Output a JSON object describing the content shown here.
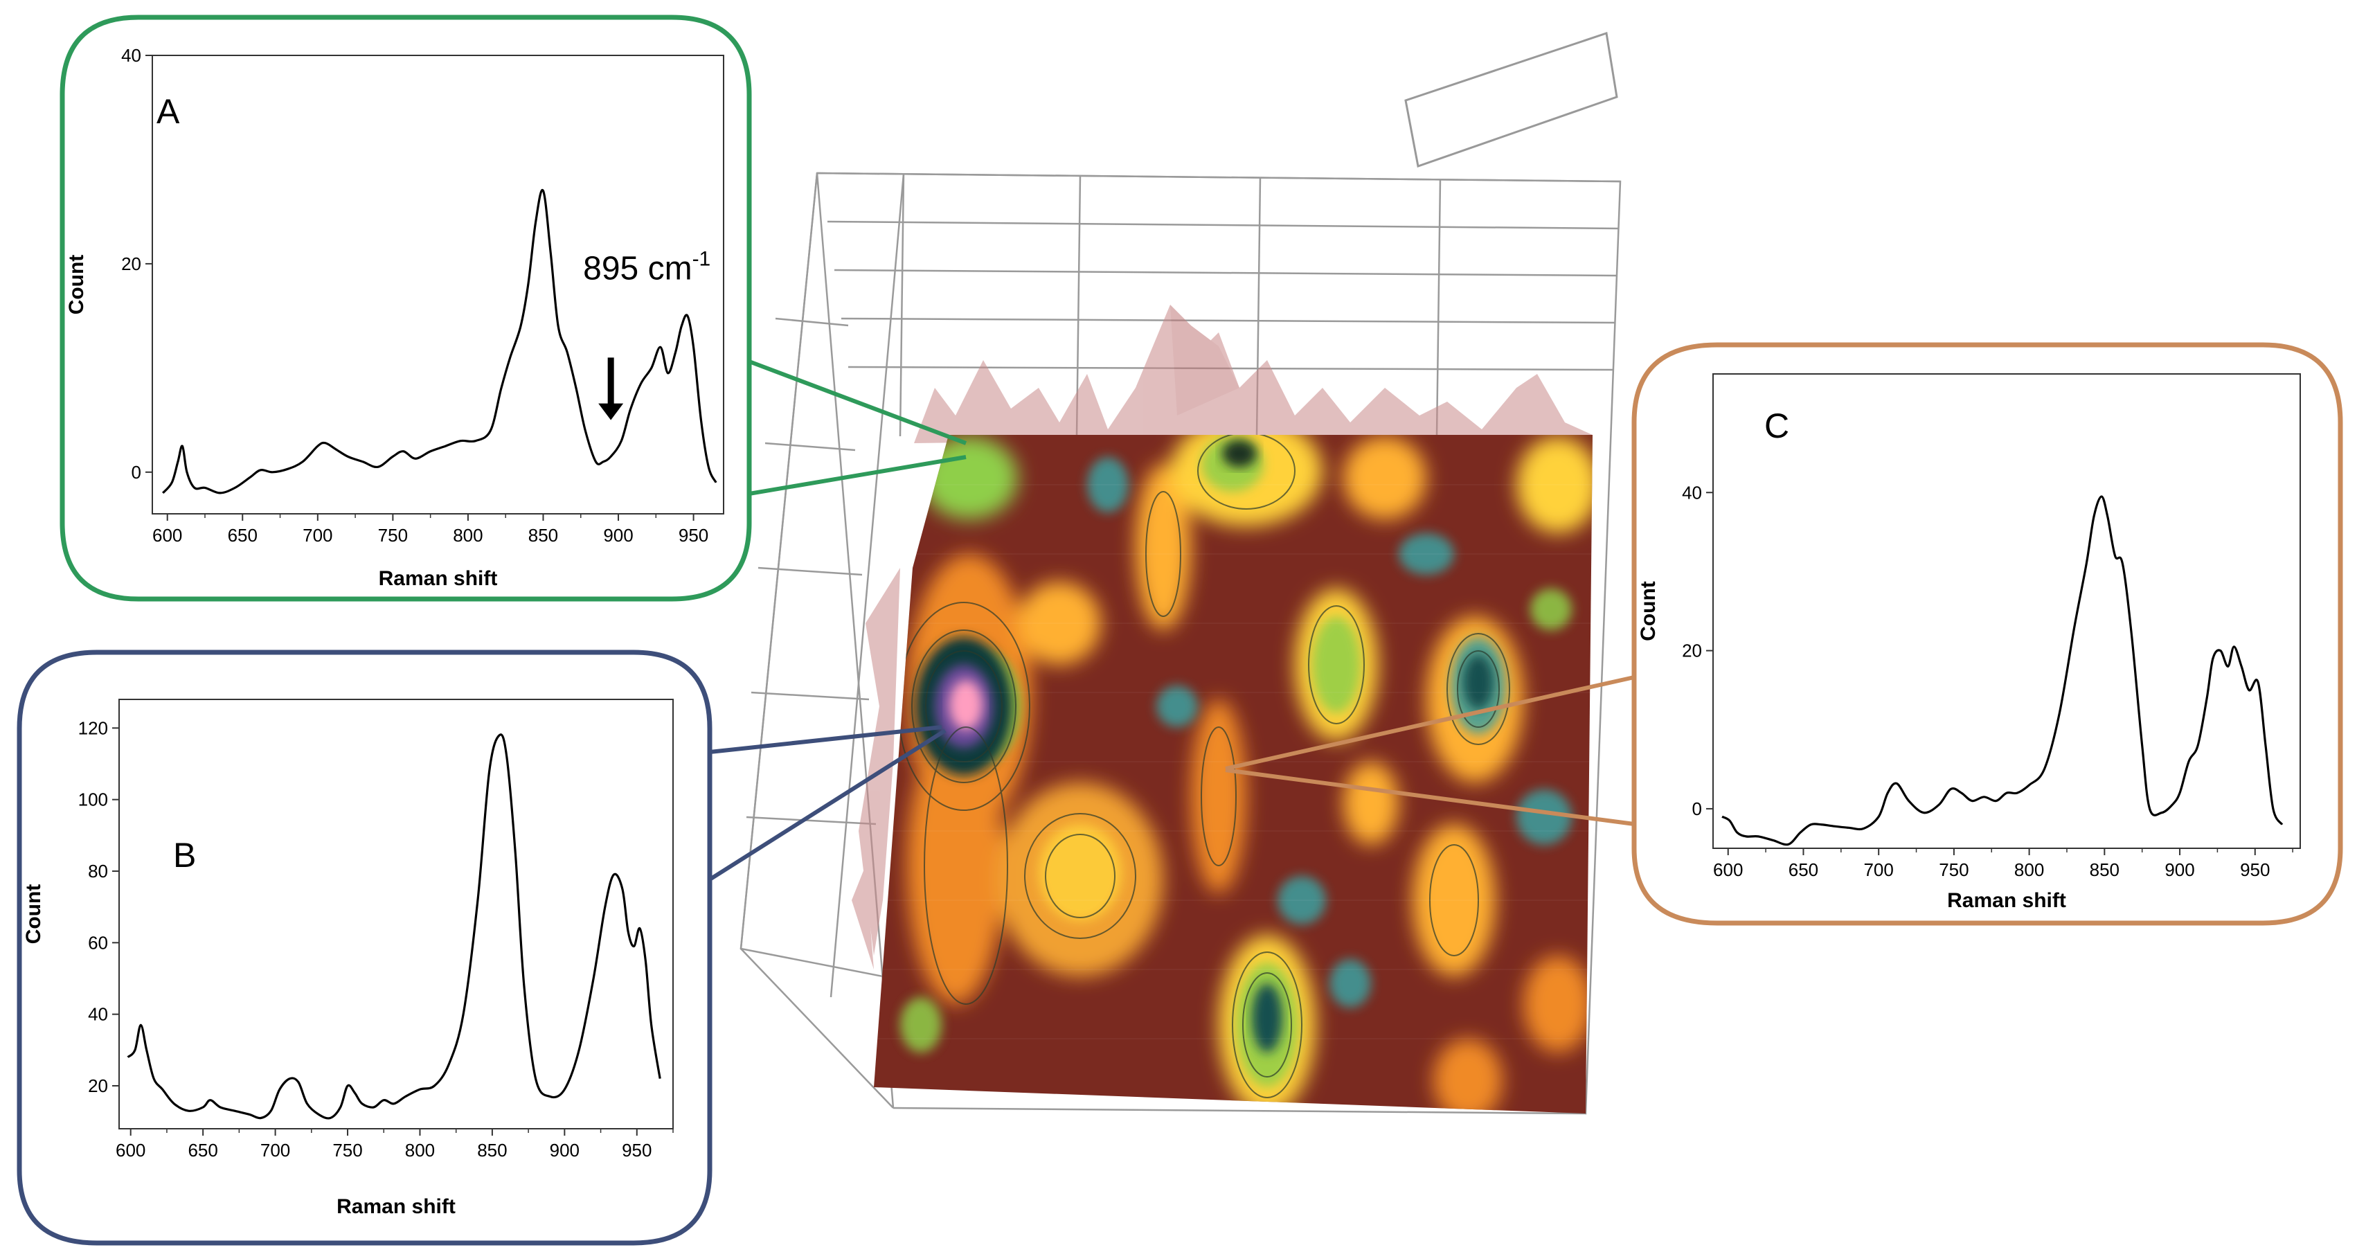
{
  "chart_data": [
    {
      "type": "line",
      "panel": "A",
      "xlabel": "Raman shift",
      "ylabel": "Count",
      "xlim": [
        590,
        970
      ],
      "ylim": [
        -4,
        40
      ],
      "xticks": [
        600,
        650,
        700,
        750,
        800,
        850,
        900,
        950
      ],
      "yticks": [
        0,
        20,
        40
      ],
      "annotation": {
        "text": "895 cm",
        "sup": "-1",
        "x": 895,
        "arrow_from_y": 11,
        "arrow_to_y": 5
      },
      "colors": {
        "frame": "#2e9a5a",
        "line": "#000000"
      },
      "series": [
        {
          "x": [
            597,
            603,
            607,
            610,
            613,
            618,
            625,
            635,
            645,
            655,
            662,
            670,
            680,
            690,
            700,
            705,
            712,
            720,
            730,
            740,
            750,
            757,
            765,
            775,
            785,
            795,
            805,
            815,
            822,
            828,
            835,
            840,
            845,
            850,
            855,
            860,
            866,
            872,
            878,
            885,
            890,
            895,
            902,
            908,
            915,
            922,
            928,
            933,
            938,
            942,
            946,
            950,
            955,
            960,
            965
          ],
          "y": [
            -2,
            -1,
            1,
            2.5,
            0,
            -1.5,
            -1.5,
            -2,
            -1.5,
            -0.5,
            0.2,
            0,
            0.3,
            1,
            2.5,
            2.8,
            2.2,
            1.5,
            1,
            0.5,
            1.5,
            2,
            1.3,
            2,
            2.5,
            3,
            3,
            4,
            8,
            11,
            14,
            18,
            24,
            27,
            21,
            14,
            11.5,
            8,
            4,
            1,
            1,
            1.5,
            3,
            6,
            8.5,
            10,
            12,
            9.5,
            11.5,
            14,
            15,
            12,
            5,
            0.5,
            -1
          ]
        }
      ]
    },
    {
      "type": "line",
      "panel": "B",
      "xlabel": "Raman shift",
      "ylabel": "Count",
      "xlim": [
        592,
        975
      ],
      "ylim": [
        8,
        128
      ],
      "xticks": [
        600,
        650,
        700,
        750,
        800,
        850,
        900,
        950
      ],
      "yticks": [
        20,
        40,
        60,
        80,
        100,
        120
      ],
      "colors": {
        "frame": "#3d4e7a",
        "line": "#000000"
      },
      "series": [
        {
          "x": [
            598,
            603,
            607,
            611,
            616,
            622,
            630,
            640,
            650,
            655,
            662,
            672,
            682,
            690,
            697,
            703,
            710,
            716,
            722,
            730,
            738,
            745,
            750,
            755,
            760,
            768,
            775,
            782,
            790,
            800,
            810,
            820,
            830,
            840,
            848,
            855,
            860,
            866,
            872,
            880,
            890,
            900,
            910,
            920,
            928,
            934,
            940,
            944,
            948,
            952,
            956,
            960,
            966
          ],
          "y": [
            28,
            30,
            37,
            30,
            22,
            19,
            15,
            13,
            14,
            16,
            14,
            13,
            12,
            11,
            13,
            19,
            22,
            21,
            15,
            12,
            11,
            14,
            20,
            18,
            15,
            14,
            16,
            15,
            17,
            19,
            20,
            26,
            40,
            72,
            108,
            118,
            112,
            85,
            48,
            22,
            17,
            19,
            30,
            50,
            70,
            79,
            75,
            63,
            59,
            64,
            55,
            37,
            22
          ]
        }
      ]
    },
    {
      "type": "line",
      "panel": "C",
      "xlabel": "Raman shift",
      "ylabel": "Count",
      "xlim": [
        590,
        980
      ],
      "ylim": [
        -5,
        55
      ],
      "xticks": [
        600,
        650,
        700,
        750,
        800,
        850,
        900,
        950
      ],
      "yticks": [
        0,
        20,
        40
      ],
      "colors": {
        "frame": "#c98a5a",
        "line": "#000000"
      },
      "series": [
        {
          "x": [
            596,
            601,
            606,
            612,
            620,
            630,
            640,
            648,
            655,
            662,
            670,
            680,
            690,
            700,
            706,
            712,
            720,
            730,
            740,
            748,
            755,
            762,
            770,
            778,
            785,
            792,
            800,
            810,
            820,
            830,
            838,
            843,
            848,
            852,
            857,
            862,
            868,
            875,
            880,
            888,
            895,
            900,
            906,
            912,
            918,
            922,
            927,
            932,
            936,
            941,
            946,
            952,
            957,
            962,
            968
          ],
          "y": [
            -1,
            -1.5,
            -3,
            -3.5,
            -3.5,
            -4,
            -4.5,
            -3,
            -2,
            -2,
            -2.2,
            -2.4,
            -2.5,
            -1,
            2,
            3.2,
            1,
            -0.5,
            0.5,
            2.5,
            2,
            1,
            1.5,
            1,
            2,
            2,
            3,
            5,
            12,
            23,
            31,
            37,
            39.5,
            37,
            32,
            31,
            22,
            8,
            0,
            -0.5,
            0.5,
            2,
            6,
            8,
            14,
            19,
            20,
            18,
            20.5,
            18,
            15,
            16,
            8,
            0,
            -2
          ]
        }
      ]
    }
  ],
  "heatmap": {
    "colors": {
      "bg": "#7a2a20",
      "hot": "#ffd23a",
      "warm": "#f08a25",
      "green": "#8fcf4a",
      "teal": "#3aa0a0",
      "deep": "#145050",
      "pink": "#ff9ec0"
    },
    "connectors": {
      "A": "#2e9a5a",
      "B": "#3d4e7a",
      "C": "#c98a5a"
    }
  }
}
